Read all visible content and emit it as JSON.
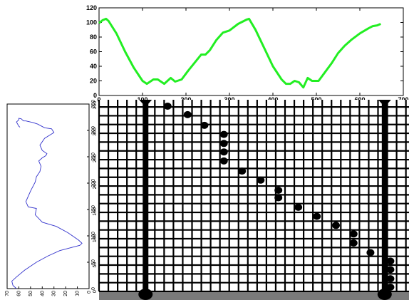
{
  "chart_data": [
    {
      "type": "line",
      "title": "",
      "xlabel": "",
      "ylabel": "",
      "xlim": [
        0,
        700
      ],
      "ylim": [
        0,
        120
      ],
      "x_ticks": [
        0,
        100,
        200,
        300,
        400,
        500,
        600,
        700
      ],
      "y_ticks": [
        0,
        20,
        40,
        60,
        80,
        100,
        120
      ],
      "grid": false,
      "series": [
        {
          "color": "#22ee22",
          "x": [
            0,
            8,
            16,
            22,
            40,
            60,
            80,
            100,
            110,
            125,
            135,
            150,
            165,
            175,
            190,
            205,
            220,
            235,
            245,
            255,
            270,
            285,
            300,
            320,
            340,
            345,
            360,
            380,
            400,
            420,
            430,
            440,
            450,
            460,
            470,
            480,
            490,
            505,
            520,
            535,
            550,
            565,
            580,
            600,
            620,
            630,
            640,
            648
          ],
          "y": [
            99,
            103,
            105,
            102,
            85,
            60,
            38,
            20,
            16,
            22,
            22,
            16,
            24,
            19,
            22,
            34,
            45,
            56,
            56,
            62,
            76,
            86,
            89,
            98,
            104,
            105,
            90,
            65,
            40,
            22,
            16,
            16,
            20,
            18,
            11,
            24,
            20,
            20,
            32,
            44,
            58,
            68,
            76,
            85,
            92,
            95,
            96,
            98
          ]
        }
      ]
    },
    {
      "type": "line",
      "orientation": "vertical",
      "title": "",
      "xlabel": "",
      "ylabel": "",
      "xlim": [
        70,
        0
      ],
      "ylim": [
        0,
        350
      ],
      "x_ticks": [
        70,
        60,
        50,
        40,
        30,
        20,
        10,
        0
      ],
      "y_ticks": [
        0,
        50,
        100,
        150,
        200,
        250,
        300,
        350
      ],
      "grid": false,
      "series": [
        {
          "color": "#3333cc",
          "x": [
            62,
            65,
            66,
            62,
            55,
            45,
            35,
            25,
            15,
            8,
            6,
            9,
            18,
            28,
            40,
            46,
            45,
            52,
            54,
            50,
            46,
            45,
            42,
            41,
            43,
            40,
            37,
            36,
            40,
            42,
            38,
            30,
            32,
            38,
            44,
            48,
            54,
            56,
            58,
            60,
            60,
            62,
            60,
            59
          ],
          "y": [
            0,
            6,
            14,
            22,
            35,
            50,
            62,
            72,
            78,
            82,
            86,
            92,
            106,
            118,
            126,
            140,
            152,
            155,
            165,
            185,
            202,
            212,
            222,
            232,
            242,
            248,
            252,
            256,
            262,
            272,
            285,
            296,
            303,
            305,
            312,
            315,
            318,
            318,
            322,
            323,
            320,
            316,
            308,
            306
          ]
        }
      ]
    },
    {
      "type": "scatter",
      "title": "",
      "xlabel": "",
      "ylabel": "",
      "xlim": [
        0,
        700
      ],
      "ylim": [
        0,
        360
      ],
      "y_ticks": [
        0,
        50,
        100,
        150,
        200,
        250,
        300,
        350
      ],
      "grid": true,
      "marker_color": "#000000",
      "vertical_lines": [
        105,
        645
      ],
      "points": [
        {
          "x": 155,
          "y": 348
        },
        {
          "x": 200,
          "y": 332
        },
        {
          "x": 238,
          "y": 312
        },
        {
          "x": 282,
          "y": 295
        },
        {
          "x": 282,
          "y": 278
        },
        {
          "x": 282,
          "y": 262
        },
        {
          "x": 282,
          "y": 245
        },
        {
          "x": 323,
          "y": 226
        },
        {
          "x": 365,
          "y": 209
        },
        {
          "x": 405,
          "y": 190
        },
        {
          "x": 405,
          "y": 176
        },
        {
          "x": 450,
          "y": 158
        },
        {
          "x": 492,
          "y": 141
        },
        {
          "x": 535,
          "y": 124
        },
        {
          "x": 575,
          "y": 108
        },
        {
          "x": 575,
          "y": 91
        },
        {
          "x": 613,
          "y": 73
        },
        {
          "x": 658,
          "y": 57
        },
        {
          "x": 658,
          "y": 41
        },
        {
          "x": 658,
          "y": 24
        },
        {
          "x": 658,
          "y": 8
        }
      ]
    }
  ]
}
